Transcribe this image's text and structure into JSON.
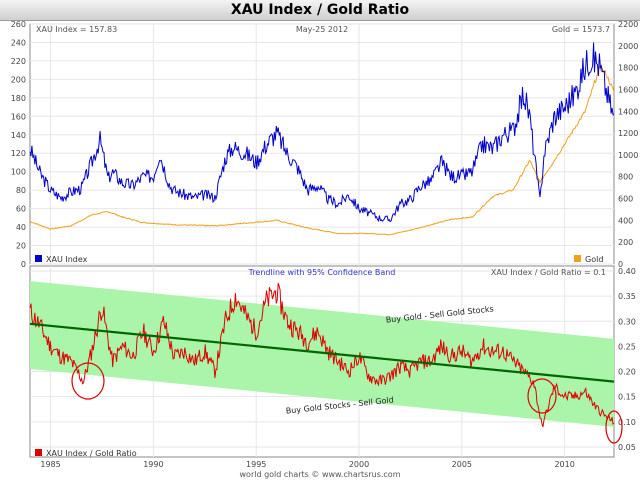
{
  "header": {
    "title": "XAU Index / Gold Ratio"
  },
  "top_panel": {
    "left_label": "XAU Index = 157.83",
    "center_label": "May-25 2012",
    "right_label": "Gold = 1573.7",
    "legend_left": "XAU Index",
    "legend_right": "Gold"
  },
  "bottom_panel": {
    "center_label": "Trendline with 95% Confidence Band",
    "right_label": "XAU Index / Gold Ratio = 0.1",
    "legend": "XAU Index / Gold Ratio",
    "annotation_upper": "Buy Gold - Sell Gold Stocks",
    "annotation_lower": "Buy Gold Stocks - Sell Gold"
  },
  "footer": {
    "credit": "world gold charts © www.chartsrus.com"
  },
  "colors": {
    "xau": "#0000cc",
    "gold": "#f0a020",
    "ratio": "#dd0000",
    "trend": "#006600",
    "band": "#aaf5aa",
    "circle": "#dd0000"
  },
  "chart_data": [
    {
      "type": "line",
      "title": "XAU Index / Gold Ratio",
      "x_ticks": [
        "1985",
        "1990",
        "1995",
        "2000",
        "2005",
        "2010"
      ],
      "x_range": [
        1984,
        2012.4
      ],
      "y_left_ticks": [
        0,
        20,
        40,
        60,
        80,
        100,
        120,
        140,
        160,
        180,
        200,
        220,
        240,
        260
      ],
      "y_left_range": [
        0,
        260
      ],
      "y_right_ticks": [
        0,
        200,
        400,
        600,
        800,
        1000,
        1200,
        1400,
        1600,
        1800,
        2000,
        2200
      ],
      "y_right_range": [
        0,
        2200
      ],
      "grid": true,
      "legend_position": "bottom",
      "series": [
        {
          "name": "XAU Index",
          "axis": "left",
          "x": [
            1984.0,
            1984.5,
            1985.0,
            1985.5,
            1986.0,
            1986.5,
            1987.0,
            1987.4,
            1987.8,
            1988.0,
            1988.5,
            1989.0,
            1989.5,
            1990.0,
            1990.3,
            1990.8,
            1991.0,
            1991.5,
            1992.0,
            1992.5,
            1993.0,
            1993.5,
            1993.9,
            1994.0,
            1994.5,
            1995.0,
            1995.5,
            1996.0,
            1996.5,
            1997.0,
            1997.5,
            1998.0,
            1998.5,
            1999.0,
            1999.5,
            2000.0,
            2000.5,
            2001.0,
            2001.5,
            2002.0,
            2002.5,
            2003.0,
            2003.5,
            2004.0,
            2004.5,
            2005.0,
            2005.5,
            2006.0,
            2006.5,
            2007.0,
            2007.5,
            2008.0,
            2008.3,
            2008.8,
            2009.0,
            2009.5,
            2010.0,
            2010.5,
            2011.0,
            2011.3,
            2011.7,
            2012.0,
            2012.4
          ],
          "values": [
            125,
            98,
            80,
            72,
            78,
            82,
            110,
            135,
            92,
            100,
            88,
            85,
            95,
            95,
            120,
            85,
            80,
            75,
            72,
            75,
            72,
            115,
            128,
            125,
            120,
            110,
            130,
            142,
            120,
            105,
            80,
            85,
            70,
            65,
            75,
            60,
            55,
            50,
            48,
            65,
            70,
            85,
            90,
            110,
            95,
            95,
            100,
            130,
            125,
            140,
            145,
            185,
            160,
            68,
            120,
            160,
            170,
            185,
            215,
            225,
            215,
            190,
            158
          ]
        },
        {
          "name": "Gold",
          "axis": "right",
          "x": [
            1984.0,
            1985.0,
            1986.0,
            1987.0,
            1987.8,
            1988.5,
            1989.5,
            1991.0,
            1993.0,
            1996.0,
            1997.5,
            1999.0,
            2000.5,
            2001.5,
            2002.5,
            2003.5,
            2004.5,
            2005.5,
            2006.5,
            2007.5,
            2008.3,
            2008.8,
            2009.5,
            2010.0,
            2010.5,
            2011.0,
            2011.7,
            2012.0,
            2012.4
          ],
          "values": [
            390,
            320,
            350,
            450,
            480,
            430,
            380,
            360,
            350,
            400,
            330,
            280,
            280,
            270,
            310,
            360,
            410,
            430,
            620,
            680,
            950,
            750,
            950,
            1100,
            1250,
            1400,
            1800,
            1750,
            1573.7
          ]
        }
      ]
    },
    {
      "type": "line",
      "title": "Trendline with 95% Confidence Band",
      "x_ticks": [
        "1985",
        "1990",
        "1995",
        "2000",
        "2005",
        "2010"
      ],
      "x_range": [
        1984,
        2012.4
      ],
      "y_right_ticks": [
        0.05,
        0.1,
        0.15,
        0.2,
        0.25,
        0.3,
        0.35,
        0.4
      ],
      "y_range": [
        0.03,
        0.41
      ],
      "grid": true,
      "legend_position": "bottom-left",
      "series": [
        {
          "name": "XAU Index / Gold Ratio",
          "x": [
            1984.0,
            1984.5,
            1985.0,
            1985.5,
            1986.0,
            1986.6,
            1987.0,
            1987.5,
            1988.0,
            1988.5,
            1989.0,
            1989.5,
            1990.0,
            1990.5,
            1991.0,
            1991.5,
            1992.0,
            1992.5,
            1993.0,
            1993.5,
            1994.0,
            1994.5,
            1995.0,
            1995.5,
            1996.0,
            1996.5,
            1997.0,
            1997.5,
            1998.0,
            1998.5,
            1999.0,
            1999.5,
            2000.0,
            2000.5,
            2001.0,
            2001.5,
            2002.0,
            2002.5,
            2003.0,
            2003.5,
            2004.0,
            2004.5,
            2005.0,
            2005.5,
            2006.0,
            2006.5,
            2007.0,
            2007.5,
            2008.0,
            2008.5,
            2008.9,
            2009.2,
            2009.5,
            2010.0,
            2010.5,
            2011.0,
            2011.5,
            2012.0,
            2012.4
          ],
          "values": [
            0.32,
            0.29,
            0.25,
            0.23,
            0.22,
            0.18,
            0.24,
            0.33,
            0.22,
            0.25,
            0.23,
            0.28,
            0.24,
            0.3,
            0.23,
            0.24,
            0.22,
            0.24,
            0.2,
            0.3,
            0.35,
            0.31,
            0.28,
            0.34,
            0.36,
            0.3,
            0.28,
            0.26,
            0.28,
            0.24,
            0.22,
            0.2,
            0.23,
            0.19,
            0.18,
            0.19,
            0.21,
            0.2,
            0.22,
            0.22,
            0.25,
            0.23,
            0.24,
            0.22,
            0.25,
            0.24,
            0.24,
            0.22,
            0.2,
            0.18,
            0.09,
            0.13,
            0.17,
            0.15,
            0.15,
            0.16,
            0.13,
            0.11,
            0.1
          ]
        },
        {
          "name": "Trendline",
          "x": [
            1984.0,
            2012.4
          ],
          "values": [
            0.295,
            0.18
          ]
        },
        {
          "name": "95% Confidence Band upper",
          "x": [
            1984.0,
            2012.4
          ],
          "values": [
            0.38,
            0.265
          ]
        },
        {
          "name": "95% Confidence Band lower",
          "x": [
            1984.0,
            2012.4
          ],
          "values": [
            0.205,
            0.09
          ]
        }
      ]
    }
  ]
}
